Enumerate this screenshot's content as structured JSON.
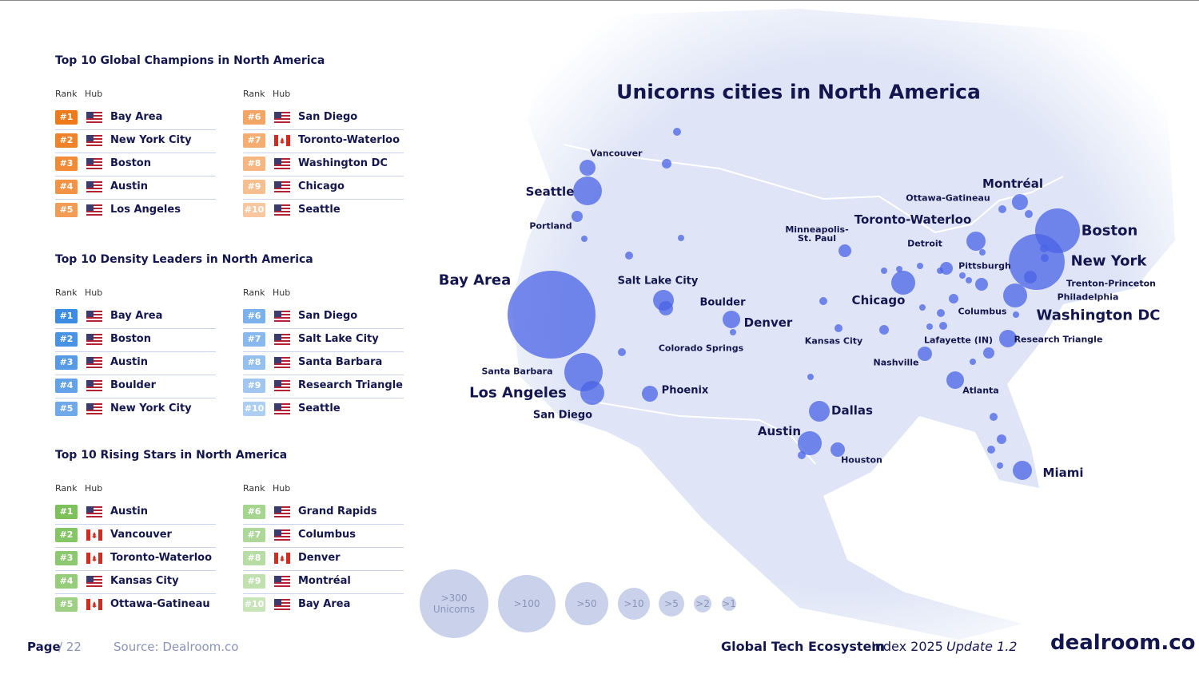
{
  "rankings": [
    {
      "title": "Top 10 Global Champions in North America",
      "color": "#f07a1a",
      "columns": [
        "Rank",
        "Hub"
      ],
      "rows": [
        {
          "rank": "#1",
          "hub": "Bay Area",
          "flag": "us"
        },
        {
          "rank": "#2",
          "hub": "New York City",
          "flag": "us"
        },
        {
          "rank": "#3",
          "hub": "Boston",
          "flag": "us"
        },
        {
          "rank": "#4",
          "hub": "Austin",
          "flag": "us"
        },
        {
          "rank": "#5",
          "hub": "Los Angeles",
          "flag": "us"
        },
        {
          "rank": "#6",
          "hub": "San Diego",
          "flag": "us"
        },
        {
          "rank": "#7",
          "hub": "Toronto-Waterloo",
          "flag": "ca"
        },
        {
          "rank": "#8",
          "hub": "Washington DC",
          "flag": "us"
        },
        {
          "rank": "#9",
          "hub": "Chicago",
          "flag": "us"
        },
        {
          "rank": "#10",
          "hub": "Seattle",
          "flag": "us"
        }
      ]
    },
    {
      "title": "Top 10 Density Leaders in North America",
      "color": "#3d8ce3",
      "columns": [
        "Rank",
        "Hub"
      ],
      "rows": [
        {
          "rank": "#1",
          "hub": "Bay Area",
          "flag": "us"
        },
        {
          "rank": "#2",
          "hub": "Boston",
          "flag": "us"
        },
        {
          "rank": "#3",
          "hub": "Austin",
          "flag": "us"
        },
        {
          "rank": "#4",
          "hub": "Boulder",
          "flag": "us"
        },
        {
          "rank": "#5",
          "hub": "New York City",
          "flag": "us"
        },
        {
          "rank": "#6",
          "hub": "San Diego",
          "flag": "us"
        },
        {
          "rank": "#7",
          "hub": "Salt Lake City",
          "flag": "us"
        },
        {
          "rank": "#8",
          "hub": "Santa Barbara",
          "flag": "us"
        },
        {
          "rank": "#9",
          "hub": "Research Triangle",
          "flag": "us"
        },
        {
          "rank": "#10",
          "hub": "Seattle",
          "flag": "us"
        }
      ]
    },
    {
      "title": "Top 10 Rising Stars in North America",
      "color": "#7cc15a",
      "columns": [
        "Rank",
        "Hub"
      ],
      "rows": [
        {
          "rank": "#1",
          "hub": "Austin",
          "flag": "us"
        },
        {
          "rank": "#2",
          "hub": "Vancouver",
          "flag": "ca"
        },
        {
          "rank": "#3",
          "hub": "Toronto-Waterloo",
          "flag": "ca"
        },
        {
          "rank": "#4",
          "hub": "Kansas City",
          "flag": "us"
        },
        {
          "rank": "#5",
          "hub": "Ottawa-Gatineau",
          "flag": "ca"
        },
        {
          "rank": "#6",
          "hub": "Grand Rapids",
          "flag": "us"
        },
        {
          "rank": "#7",
          "hub": "Columbus",
          "flag": "us"
        },
        {
          "rank": "#8",
          "hub": "Denver",
          "flag": "ca"
        },
        {
          "rank": "#9",
          "hub": "Montréal",
          "flag": "us"
        },
        {
          "rank": "#10",
          "hub": "Bay Area",
          "flag": "us"
        }
      ]
    }
  ],
  "map": {
    "title": "Unicorns cities in North America",
    "labels": [
      "Vancouver",
      "Seattle",
      "Portland",
      "Bay Area",
      "Salt Lake City",
      "Boulder",
      "Denver",
      "Colorado Springs",
      "Santa Barbara",
      "Los Angeles",
      "San Diego",
      "Phoenix",
      "Dallas",
      "Austin",
      "Houston",
      "Kansas City",
      "Minneapolis-St. Paul",
      "Chicago",
      "Detroit",
      "Toronto-Waterloo",
      "Ottawa-Gatineau",
      "Montréal",
      "Boston",
      "New York",
      "Trenton-Princeton",
      "Philadelphia",
      "Pittsburgh",
      "Columbus",
      "Washington DC",
      "Research Triangle",
      "Lafayette (IN)",
      "Nashville",
      "Atlanta",
      "Miami"
    ],
    "legend": [
      ">300 Unicorns",
      ">100",
      ">50",
      ">10",
      ">5",
      ">2",
      ">1"
    ]
  },
  "footer": {
    "page": "Page",
    "page_total": "/ 22",
    "source": "Source: Dealroom.co",
    "brand": "Global Tech Ecosystem",
    "index": "Index 2025",
    "update": "Update 1.2",
    "logo": "dealroom.co"
  }
}
